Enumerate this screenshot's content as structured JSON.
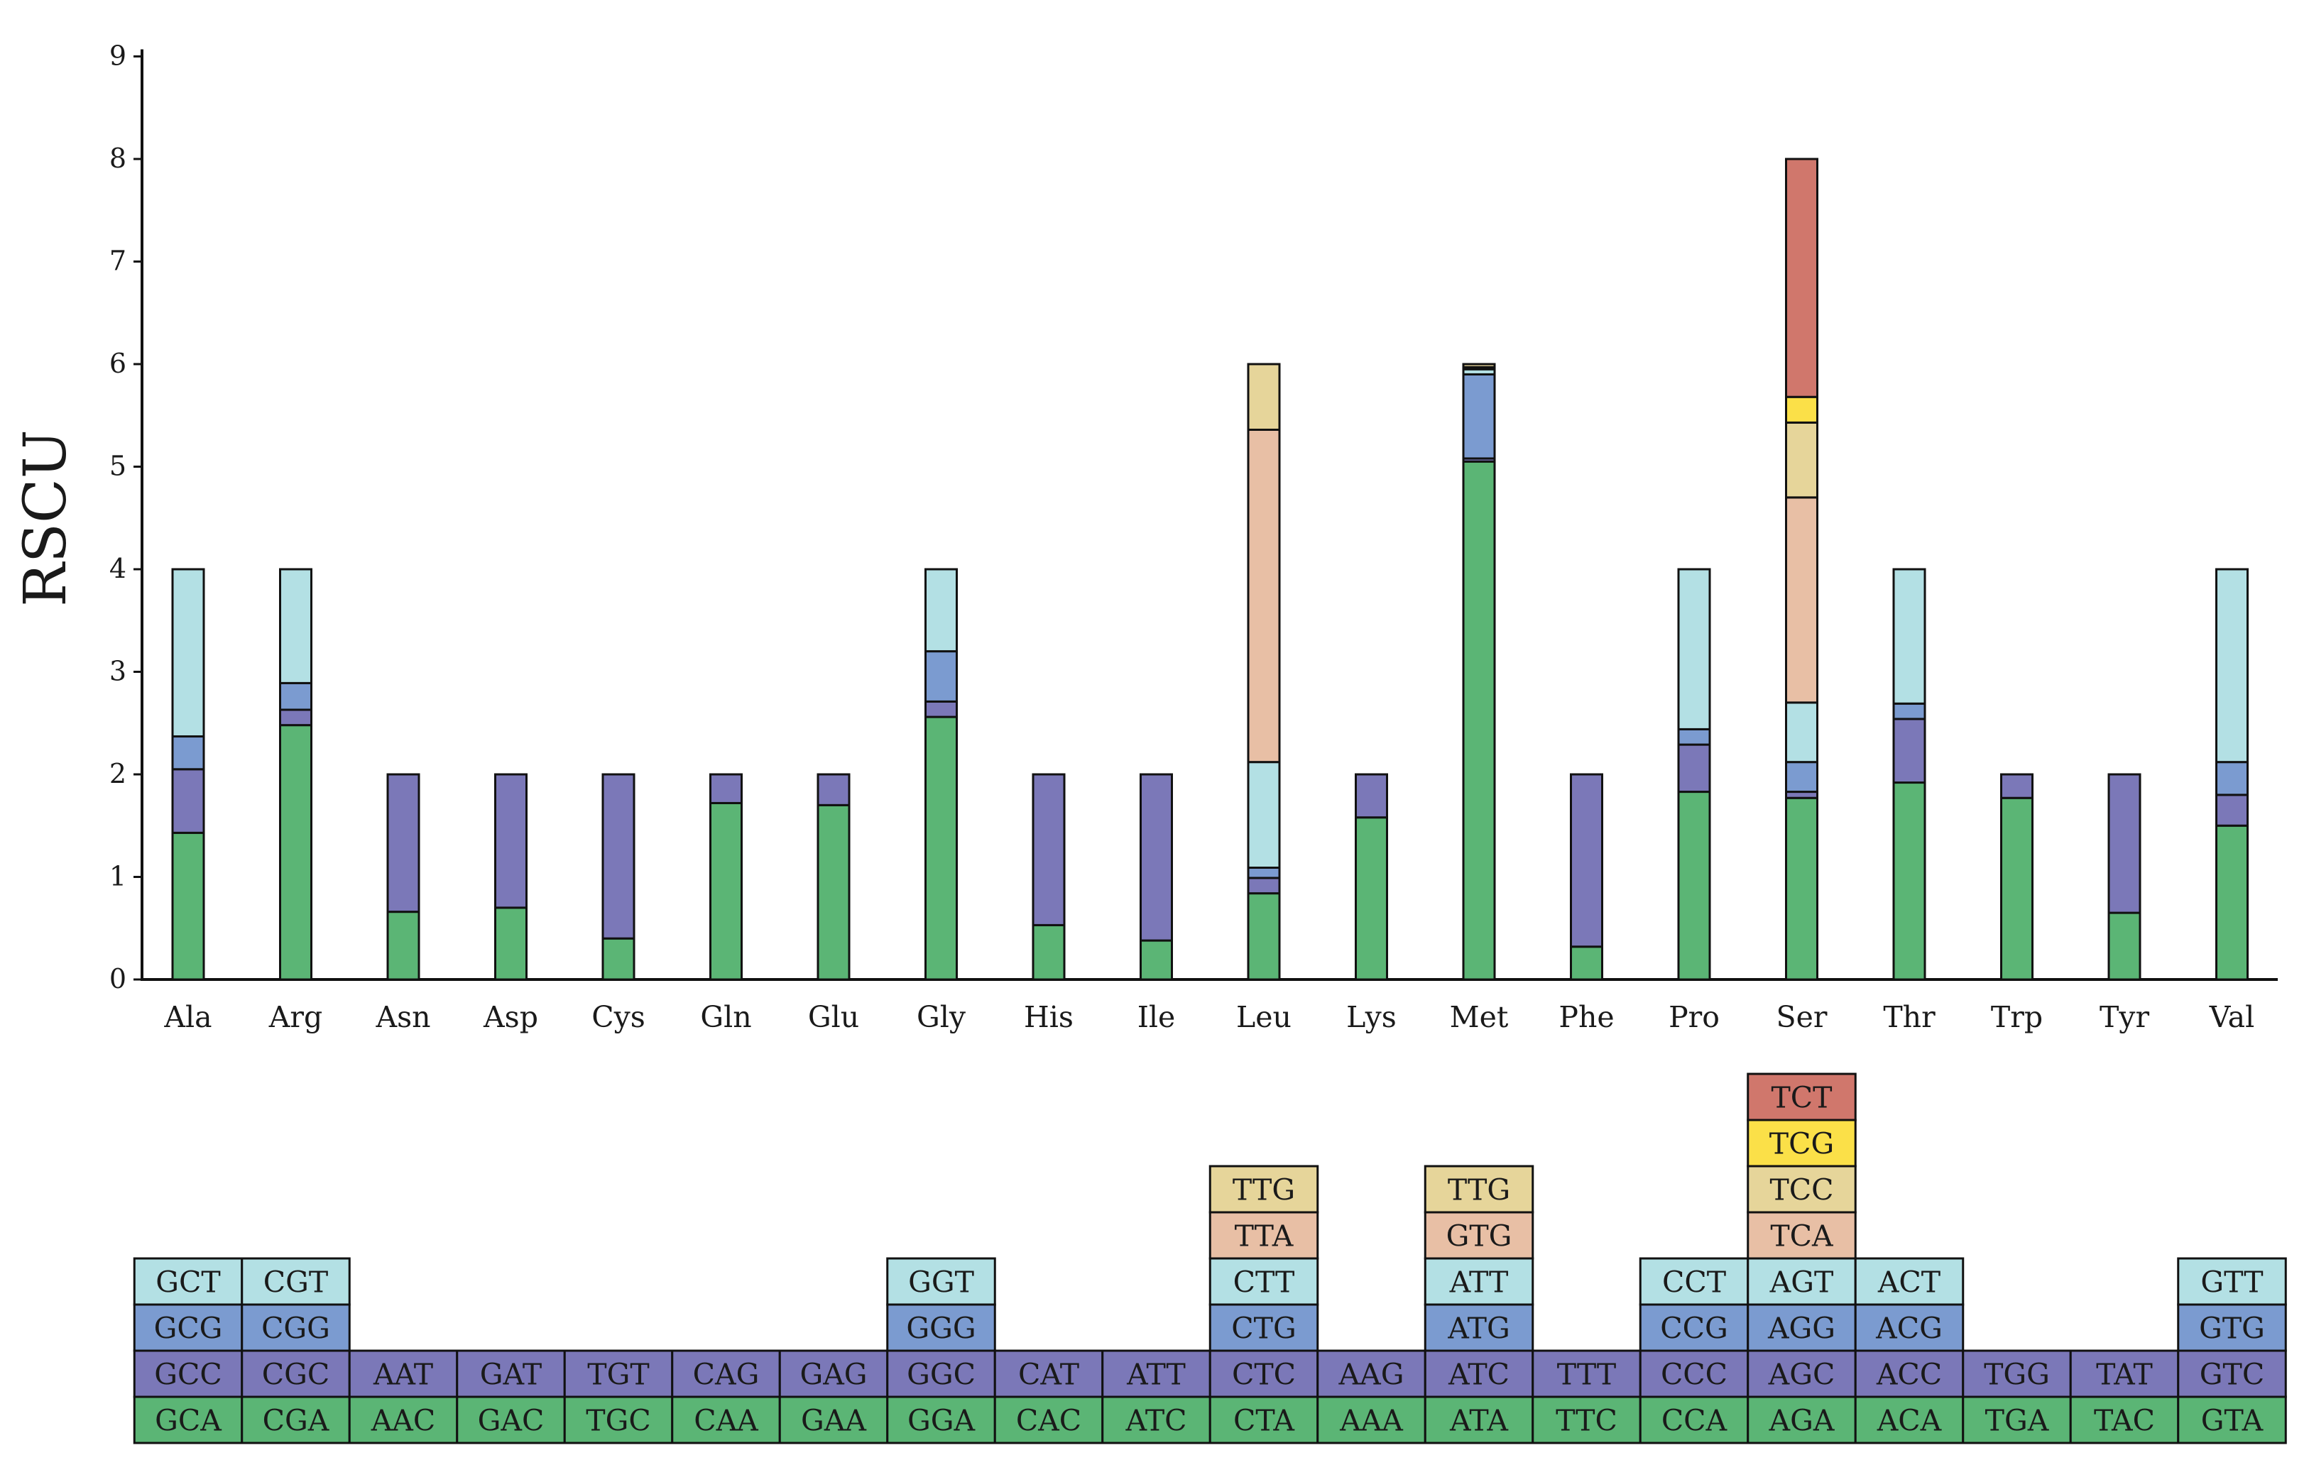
{
  "chart_data": {
    "type": "bar",
    "stacked": true,
    "ylabel": "RSCU",
    "xlabel": "",
    "ylim": [
      0,
      9
    ],
    "yticks": [
      "0",
      "1",
      "2",
      "3",
      "4",
      "5",
      "6",
      "7",
      "8",
      "9"
    ],
    "grid": false,
    "legend": "codon table below the plot",
    "layer_colors": [
      "#5bb575",
      "#7b78b8",
      "#7b9bd0",
      "#b3e0e4",
      "#e8bfa5",
      "#e6d59a",
      "#fbe048",
      "#d0776c"
    ],
    "categories": [
      "Ala",
      "Arg",
      "Asn",
      "Asp",
      "Cys",
      "Gln",
      "Glu",
      "Gly",
      "His",
      "Ile",
      "Leu",
      "Lys",
      "Met",
      "Phe",
      "Pro",
      "Ser",
      "Thr",
      "Trp",
      "Tyr",
      "Val"
    ],
    "stacks": [
      [
        {
          "codon": "GCA",
          "value": 1.43
        },
        {
          "codon": "GCC",
          "value": 0.62
        },
        {
          "codon": "GCG",
          "value": 0.32
        },
        {
          "codon": "GCT",
          "value": 1.63
        }
      ],
      [
        {
          "codon": "CGA",
          "value": 2.48
        },
        {
          "codon": "CGC",
          "value": 0.15
        },
        {
          "codon": "CGG",
          "value": 0.26
        },
        {
          "codon": "CGT",
          "value": 1.11
        }
      ],
      [
        {
          "codon": "AAC",
          "value": 0.66
        },
        {
          "codon": "AAT",
          "value": 1.34
        }
      ],
      [
        {
          "codon": "GAC",
          "value": 0.7
        },
        {
          "codon": "GAT",
          "value": 1.3
        }
      ],
      [
        {
          "codon": "TGC",
          "value": 0.4
        },
        {
          "codon": "TGT",
          "value": 1.6
        }
      ],
      [
        {
          "codon": "CAA",
          "value": 1.72
        },
        {
          "codon": "CAG",
          "value": 0.28
        }
      ],
      [
        {
          "codon": "GAA",
          "value": 1.7
        },
        {
          "codon": "GAG",
          "value": 0.3
        }
      ],
      [
        {
          "codon": "GGA",
          "value": 2.56
        },
        {
          "codon": "GGC",
          "value": 0.15
        },
        {
          "codon": "GGG",
          "value": 0.49
        },
        {
          "codon": "GGT",
          "value": 0.8
        }
      ],
      [
        {
          "codon": "CAC",
          "value": 0.53
        },
        {
          "codon": "CAT",
          "value": 1.47
        }
      ],
      [
        {
          "codon": "ATC",
          "value": 0.38
        },
        {
          "codon": "ATT",
          "value": 1.62
        }
      ],
      [
        {
          "codon": "CTA",
          "value": 0.84
        },
        {
          "codon": "CTC",
          "value": 0.15
        },
        {
          "codon": "CTG",
          "value": 0.1
        },
        {
          "codon": "CTT",
          "value": 1.03
        },
        {
          "codon": "TTA",
          "value": 3.24
        },
        {
          "codon": "TTG",
          "value": 0.64
        }
      ],
      [
        {
          "codon": "AAA",
          "value": 1.58
        },
        {
          "codon": "AAG",
          "value": 0.42
        }
      ],
      [
        {
          "codon": "ATA",
          "value": 5.05
        },
        {
          "codon": "ATC",
          "value": 0.03
        },
        {
          "codon": "ATG",
          "value": 0.82
        },
        {
          "codon": "ATT",
          "value": 0.05
        },
        {
          "codon": "GTG",
          "value": 0.02
        },
        {
          "codon": "TTG",
          "value": 0.03
        }
      ],
      [
        {
          "codon": "TTC",
          "value": 0.32
        },
        {
          "codon": "TTT",
          "value": 1.68
        }
      ],
      [
        {
          "codon": "CCA",
          "value": 1.83
        },
        {
          "codon": "CCC",
          "value": 0.46
        },
        {
          "codon": "CCG",
          "value": 0.15
        },
        {
          "codon": "CCT",
          "value": 1.56
        }
      ],
      [
        {
          "codon": "AGA",
          "value": 1.77
        },
        {
          "codon": "AGC",
          "value": 0.06
        },
        {
          "codon": "AGG",
          "value": 0.29
        },
        {
          "codon": "AGT",
          "value": 0.58
        },
        {
          "codon": "TCA",
          "value": 2.0
        },
        {
          "codon": "TCC",
          "value": 0.73
        },
        {
          "codon": "TCG",
          "value": 0.25
        },
        {
          "codon": "TCT",
          "value": 2.32
        }
      ],
      [
        {
          "codon": "ACA",
          "value": 1.92
        },
        {
          "codon": "ACC",
          "value": 0.62
        },
        {
          "codon": "ACG",
          "value": 0.15
        },
        {
          "codon": "ACT",
          "value": 1.31
        }
      ],
      [
        {
          "codon": "TGA",
          "value": 1.77
        },
        {
          "codon": "TGG",
          "value": 0.23
        }
      ],
      [
        {
          "codon": "TAC",
          "value": 0.65
        },
        {
          "codon": "TAT",
          "value": 1.35
        }
      ],
      [
        {
          "codon": "GTA",
          "value": 1.5
        },
        {
          "codon": "GTC",
          "value": 0.3
        },
        {
          "codon": "GTG",
          "value": 0.32
        },
        {
          "codon": "GTT",
          "value": 1.88
        }
      ]
    ]
  }
}
